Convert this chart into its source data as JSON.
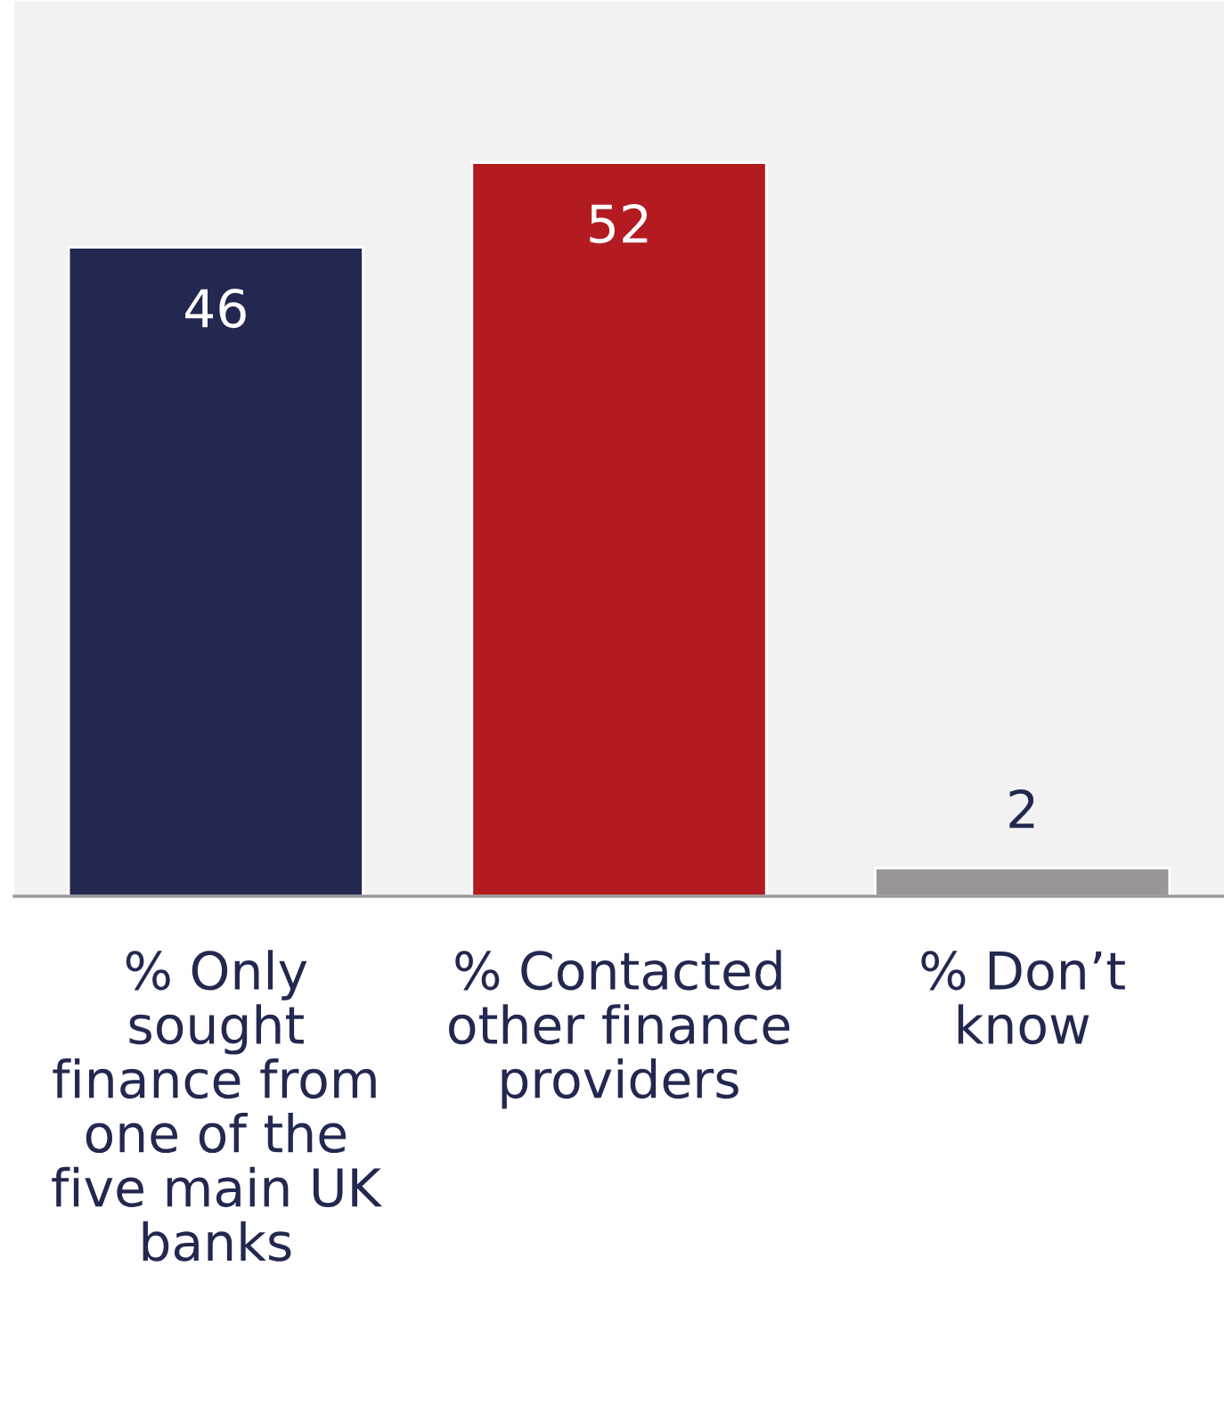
{
  "chart_data": {
    "type": "bar",
    "categories": [
      "% Only sought finance from one of the five main UK banks",
      "% Contacted other finance providers",
      "% Don’t know"
    ],
    "values": [
      46,
      52,
      2
    ],
    "colors": [
      "#22284f",
      "#b31b20",
      "#9a9597"
    ],
    "data_labels": true
  }
}
